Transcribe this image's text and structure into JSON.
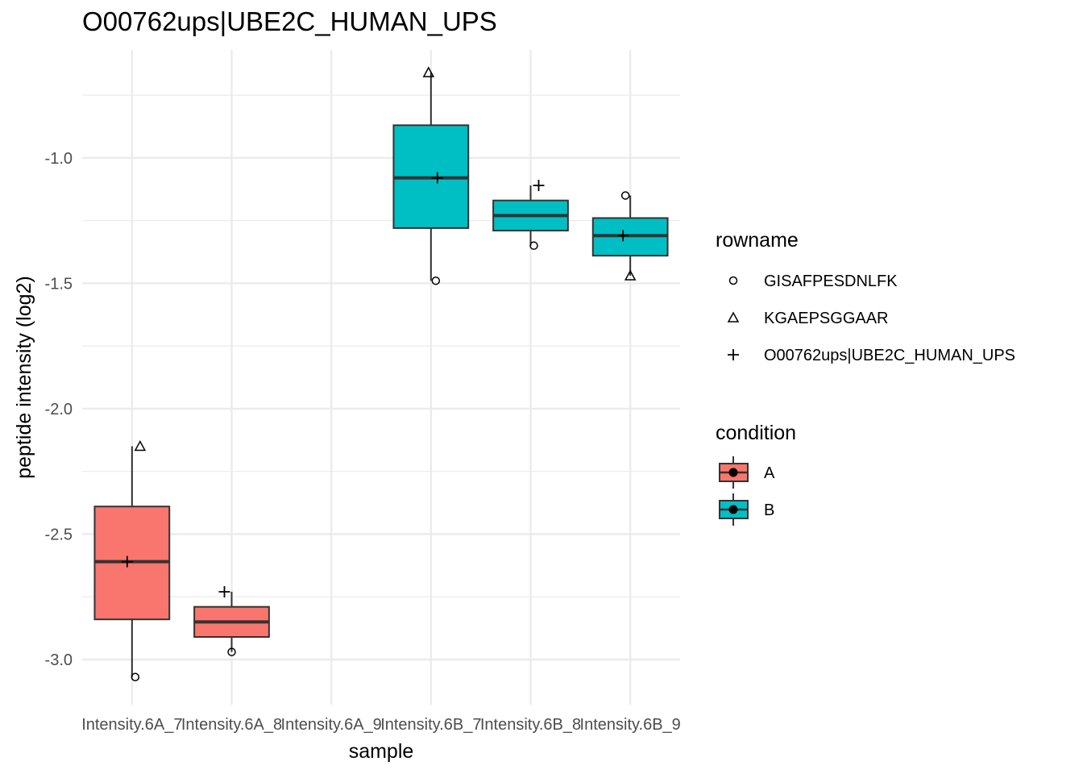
{
  "chart_data": {
    "type": "box",
    "title": "O00762ups|UBE2C_HUMAN_UPS",
    "xlabel": "sample",
    "ylabel": "peptide intensity (log2)",
    "ylim": [
      -3.18,
      -0.57
    ],
    "yticks": [
      -1.0,
      -1.5,
      -2.0,
      -2.5,
      -3.0
    ],
    "ytick_labels": [
      "-1.0",
      "-1.5",
      "-2.0",
      "-2.5",
      "-3.0"
    ],
    "categories": [
      "Intensity.6A_7",
      "Intensity.6A_8",
      "Intensity.6A_9",
      "Intensity.6B_7",
      "Intensity.6B_8",
      "Intensity.6B_9"
    ],
    "grid": true,
    "boxes": [
      {
        "sample": "Intensity.6A_7",
        "condition": "A",
        "q1": -2.84,
        "median": -2.61,
        "q3": -2.39,
        "whisker_low": -3.07,
        "whisker_high": -2.15
      },
      {
        "sample": "Intensity.6A_8",
        "condition": "A",
        "q1": -2.91,
        "median": -2.85,
        "q3": -2.79,
        "whisker_low": -2.97,
        "whisker_high": -2.73
      },
      {
        "sample": "Intensity.6B_7",
        "condition": "B",
        "q1": -1.28,
        "median": -1.08,
        "q3": -0.87,
        "whisker_low": -1.49,
        "whisker_high": -0.66
      },
      {
        "sample": "Intensity.6B_8",
        "condition": "B",
        "q1": -1.29,
        "median": -1.23,
        "q3": -1.17,
        "whisker_low": -1.35,
        "whisker_high": -1.11
      },
      {
        "sample": "Intensity.6B_9",
        "condition": "B",
        "q1": -1.39,
        "median": -1.31,
        "q3": -1.24,
        "whisker_low": -1.47,
        "whisker_high": -1.15
      }
    ],
    "points": [
      {
        "sample": "Intensity.6A_7",
        "rowname": "GISAFPESDNLFK",
        "y": -3.07
      },
      {
        "sample": "Intensity.6A_7",
        "rowname": "KGAEPSGGAAR",
        "y": -2.15
      },
      {
        "sample": "Intensity.6A_7",
        "rowname": "O00762ups|UBE2C_HUMAN_UPS",
        "y": -2.61
      },
      {
        "sample": "Intensity.6A_8",
        "rowname": "GISAFPESDNLFK",
        "y": -2.97
      },
      {
        "sample": "Intensity.6A_8",
        "rowname": "O00762ups|UBE2C_HUMAN_UPS",
        "y": -2.73
      },
      {
        "sample": "Intensity.6B_7",
        "rowname": "GISAFPESDNLFK",
        "y": -1.49
      },
      {
        "sample": "Intensity.6B_7",
        "rowname": "KGAEPSGGAAR",
        "y": -0.66
      },
      {
        "sample": "Intensity.6B_7",
        "rowname": "O00762ups|UBE2C_HUMAN_UPS",
        "y": -1.08
      },
      {
        "sample": "Intensity.6B_8",
        "rowname": "GISAFPESDNLFK",
        "y": -1.35
      },
      {
        "sample": "Intensity.6B_8",
        "rowname": "O00762ups|UBE2C_HUMAN_UPS",
        "y": -1.11
      },
      {
        "sample": "Intensity.6B_9",
        "rowname": "GISAFPESDNLFK",
        "y": -1.15
      },
      {
        "sample": "Intensity.6B_9",
        "rowname": "KGAEPSGGAAR",
        "y": -1.47
      },
      {
        "sample": "Intensity.6B_9",
        "rowname": "O00762ups|UBE2C_HUMAN_UPS",
        "y": -1.31
      }
    ],
    "legends": [
      {
        "title": "rowname",
        "items": [
          {
            "label": "GISAFPESDNLFK",
            "shape": "circle"
          },
          {
            "label": "KGAEPSGGAAR",
            "shape": "triangle"
          },
          {
            "label": "O00762ups|UBE2C_HUMAN_UPS",
            "shape": "plus"
          }
        ]
      },
      {
        "title": "condition",
        "items": [
          {
            "label": "A",
            "color": "#F8766D"
          },
          {
            "label": "B",
            "color": "#00BFC4"
          }
        ]
      }
    ],
    "colors": {
      "A": "#F8766D",
      "B": "#00BFC4",
      "grid": "#EBEBEB",
      "outline": "#333333"
    }
  }
}
